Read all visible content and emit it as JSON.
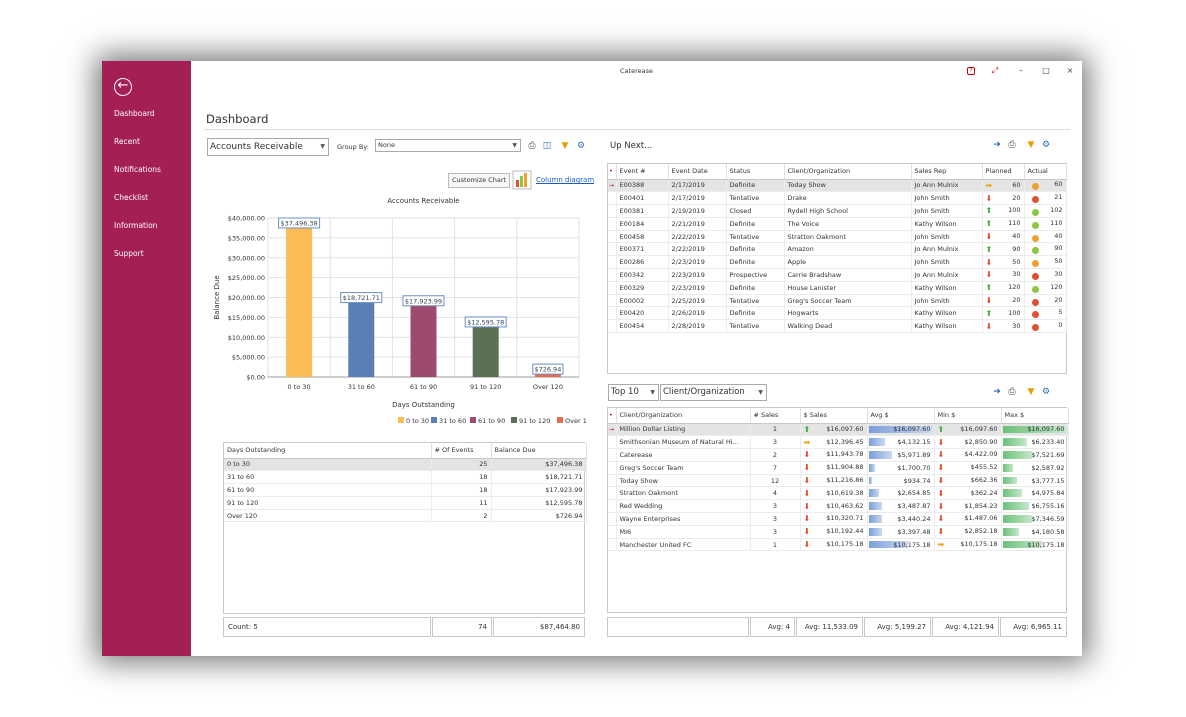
{
  "app": {
    "title": "Caterease"
  },
  "sidebar": {
    "items": [
      {
        "label": "Dashboard"
      },
      {
        "label": "Recent"
      },
      {
        "label": "Notifications"
      },
      {
        "label": "Checklist"
      },
      {
        "label": "Information"
      },
      {
        "label": "Support"
      }
    ]
  },
  "page": {
    "title": "Dashboard"
  },
  "left": {
    "report_select": "Accounts Receivable",
    "groupby_label": "Group By:",
    "groupby_value": "None",
    "customize_label": "Customize Chart",
    "diagram_link": "Column diagram"
  },
  "chart_data": {
    "type": "bar",
    "title": "Accounts Receivable",
    "xlabel": "Days Outstanding",
    "ylabel": "Balance Due",
    "categories": [
      "0 to 30",
      "31 to 60",
      "61 to 90",
      "91 to 120",
      "Over 120"
    ],
    "values": [
      37496.38,
      18721.71,
      17923.99,
      12595.78,
      726.94
    ],
    "value_labels": [
      "$37,496.38",
      "$18,721.71",
      "$17,923.99",
      "$12,595.78",
      "$726.94"
    ],
    "colors": [
      "#fbbc55",
      "#5a7fb5",
      "#9e4a6e",
      "#5c7055",
      "#e86d4f"
    ],
    "ylim": [
      0,
      40000
    ],
    "yticks": [
      "$0.00",
      "$5,000.00",
      "$10,000.00",
      "$15,000.00",
      "$20,000.00",
      "$25,000.00",
      "$30,000.00",
      "$35,000.00",
      "$40,000.00"
    ],
    "grid": true,
    "legend": "bottom"
  },
  "ar_table": {
    "headers": [
      "Days Outstanding",
      "# Of Events",
      "Balance Due"
    ],
    "rows": [
      [
        "0 to 30",
        "25",
        "$37,496.38"
      ],
      [
        "31 to 60",
        "18",
        "$18,721.71"
      ],
      [
        "61 to 90",
        "18",
        "$17,923.99"
      ],
      [
        "91 to 120",
        "11",
        "$12,595.78"
      ],
      [
        "Over 120",
        "2",
        "$726.94"
      ]
    ],
    "footer": [
      "Count: 5",
      "74",
      "$87,464.80"
    ]
  },
  "upnext": {
    "title": "Up Next...",
    "headers": [
      "Event #",
      "Event Date",
      "Status",
      "Client/Organization",
      "Sales Rep",
      "Planned",
      "Actual"
    ],
    "rows": [
      [
        "E00388",
        "2/17/2019",
        "Definite",
        "Today Show",
        "Jo Ann Mulnix",
        "rt",
        "60",
        "o",
        "60"
      ],
      [
        "E00401",
        "2/17/2019",
        "Tentative",
        "Drake",
        "John Smith",
        "dn",
        "20",
        "r",
        "21"
      ],
      [
        "E00381",
        "2/19/2019",
        "Closed",
        "Rydell High School",
        "John Smith",
        "up",
        "100",
        "g",
        "102"
      ],
      [
        "E00184",
        "2/21/2019",
        "Definite",
        "The Voice",
        "Kathy Wilson",
        "up",
        "110",
        "g",
        "110"
      ],
      [
        "E00458",
        "2/22/2019",
        "Tentative",
        "Stratton Oakmont",
        "John Smith",
        "dn",
        "40",
        "o",
        "40"
      ],
      [
        "E00371",
        "2/22/2019",
        "Definite",
        "Amazon",
        "Jo Ann Mulnix",
        "up",
        "90",
        "g",
        "90"
      ],
      [
        "E00286",
        "2/23/2019",
        "Definite",
        "Apple",
        "John Smith",
        "dn",
        "50",
        "o",
        "50"
      ],
      [
        "E00342",
        "2/23/2019",
        "Prospective",
        "Carrie Bradshaw",
        "Jo Ann Mulnix",
        "dn",
        "30",
        "r",
        "30"
      ],
      [
        "E00329",
        "2/23/2019",
        "Definite",
        "House Lanister",
        "Kathy Wilson",
        "up",
        "120",
        "g",
        "120"
      ],
      [
        "E00002",
        "2/25/2019",
        "Tentative",
        "Greg's Soccer Team",
        "John Smith",
        "dn",
        "20",
        "r",
        "20"
      ],
      [
        "E00420",
        "2/26/2019",
        "Definite",
        "Hogwarts",
        "Kathy Wilson",
        "up",
        "100",
        "r",
        "5"
      ],
      [
        "E00454",
        "2/28/2019",
        "Tentative",
        "Walking Dead",
        "Kathy Wilson",
        "dn",
        "30",
        "r",
        "0"
      ]
    ]
  },
  "top": {
    "count_select": "Top 10",
    "by_select": "Client/Organization",
    "headers": [
      "Client/Organization",
      "# Sales",
      "$ Sales",
      "Avg $",
      "Min $",
      "Max $"
    ],
    "rows": [
      [
        "Million Dollar Listing",
        "1",
        "up",
        "$16,097.60",
        "$16,097.60",
        "up",
        "$16,097.60",
        "$16,097.60"
      ],
      [
        "Smithsonian Museum of Natural Hi...",
        "3",
        "rt",
        "$12,396.45",
        "$4,132.15",
        "dn",
        "$2,850.90",
        "$6,233.40"
      ],
      [
        "Caterease",
        "2",
        "dn",
        "$11,943.78",
        "$5,971.89",
        "dn",
        "$4,422.09",
        "$7,521.69"
      ],
      [
        "Greg's Soccer Team",
        "7",
        "dn",
        "$11,904.88",
        "$1,700.70",
        "dn",
        "$455.52",
        "$2,587.92"
      ],
      [
        "Today Show",
        "12",
        "dn",
        "$11,216.86",
        "$934.74",
        "dn",
        "$662.36",
        "$3,777.15"
      ],
      [
        "Stratton Oakmont",
        "4",
        "dn",
        "$10,619.38",
        "$2,654.85",
        "dn",
        "$362.24",
        "$4,975.84"
      ],
      [
        "Red Wedding",
        "3",
        "dn",
        "$10,463.62",
        "$3,487.87",
        "dn",
        "$1,854.23",
        "$6,755.16"
      ],
      [
        "Wayne Enterprises",
        "3",
        "dn",
        "$10,320.71",
        "$3,440.24",
        "dn",
        "$1,487.06",
        "$7,346.59"
      ],
      [
        "MI6",
        "3",
        "dn",
        "$10,192.44",
        "$3,397.48",
        "dn",
        "$2,852.18",
        "$4,180.58"
      ],
      [
        "Manchester United FC",
        "1",
        "dn",
        "$10,175.18",
        "$10,175.18",
        "rt",
        "$10,175.18",
        "$10,175.18"
      ]
    ],
    "avg_fraction": [
      1.0,
      0.26,
      0.37,
      0.11,
      0.06,
      0.16,
      0.22,
      0.21,
      0.21,
      0.63
    ],
    "max_fraction": [
      1.0,
      0.39,
      0.47,
      0.16,
      0.23,
      0.31,
      0.42,
      0.46,
      0.26,
      0.63
    ],
    "footer": [
      "Avg: 4",
      "Avg: 11,533.09",
      "Avg: 5,199.27",
      "Avg: 4,121.94",
      "Avg: 6,965.11"
    ]
  }
}
